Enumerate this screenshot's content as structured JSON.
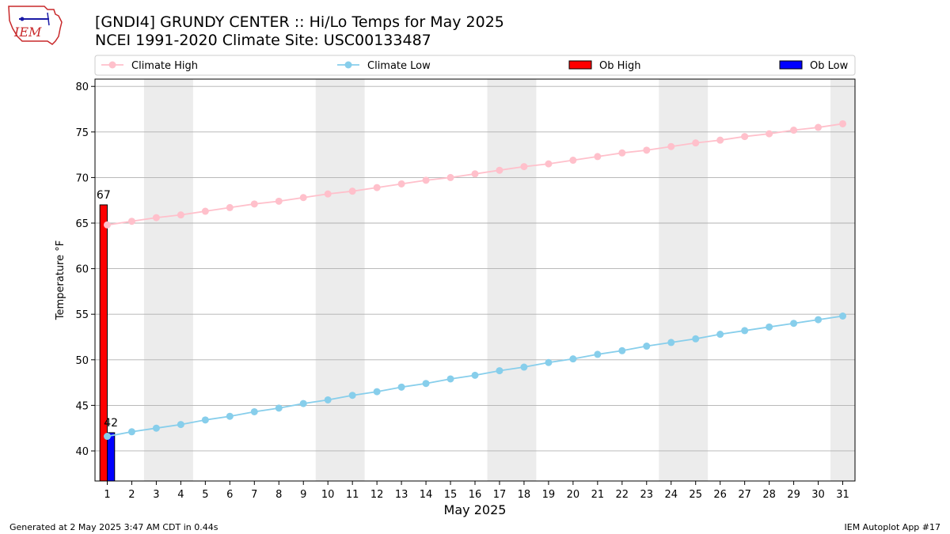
{
  "logo": {
    "text": "IEM"
  },
  "title": {
    "line1": "[GNDI4] GRUNDY CENTER :: Hi/Lo Temps for May 2025",
    "line2": "NCEI 1991-2020 Climate Site: USC00133487"
  },
  "footer": {
    "left": "Generated at 2 May 2025 3:47 AM CDT in 0.44s",
    "right": "IEM Autoplot App #17"
  },
  "colors": {
    "climate_high": "#ffc0cb",
    "climate_low": "#87ceeb",
    "ob_high": "#ff0000",
    "ob_low": "#0000ff",
    "weekend_band": "#ececec",
    "grid": "#b0b0b0"
  },
  "chart_data": {
    "type": "line",
    "xlabel": "May 2025",
    "ylabel": "Temperature °F",
    "xlim": [
      0.5,
      31.5
    ],
    "ylim": [
      36.7,
      80.8
    ],
    "yticks": [
      40,
      45,
      50,
      55,
      60,
      65,
      70,
      75,
      80
    ],
    "x": [
      1,
      2,
      3,
      4,
      5,
      6,
      7,
      8,
      9,
      10,
      11,
      12,
      13,
      14,
      15,
      16,
      17,
      18,
      19,
      20,
      21,
      22,
      23,
      24,
      25,
      26,
      27,
      28,
      29,
      30,
      31
    ],
    "grid": "horizontal",
    "legend_position": "top",
    "weekend_bands": [
      [
        2.5,
        4.5
      ],
      [
        9.5,
        11.5
      ],
      [
        16.5,
        18.5
      ],
      [
        23.5,
        25.5
      ],
      [
        30.5,
        31.5
      ]
    ],
    "series": [
      {
        "name": "Climate High",
        "type": "line",
        "values": [
          64.8,
          65.2,
          65.6,
          65.9,
          66.3,
          66.7,
          67.1,
          67.4,
          67.8,
          68.2,
          68.5,
          68.9,
          69.3,
          69.7,
          70.0,
          70.4,
          70.8,
          71.2,
          71.5,
          71.9,
          72.3,
          72.7,
          73.0,
          73.4,
          73.8,
          74.1,
          74.5,
          74.8,
          75.2,
          75.5,
          75.9
        ]
      },
      {
        "name": "Climate Low",
        "type": "line",
        "values": [
          41.6,
          42.1,
          42.5,
          42.9,
          43.4,
          43.8,
          44.3,
          44.7,
          45.2,
          45.6,
          46.1,
          46.5,
          47.0,
          47.4,
          47.9,
          48.3,
          48.8,
          49.2,
          49.7,
          50.1,
          50.6,
          51.0,
          51.5,
          51.9,
          52.3,
          52.8,
          53.2,
          53.6,
          54.0,
          54.4,
          54.8
        ]
      },
      {
        "name": "Ob High",
        "type": "bar",
        "x": [
          1
        ],
        "values": [
          67
        ],
        "labels": [
          "67"
        ]
      },
      {
        "name": "Ob Low",
        "type": "bar",
        "x": [
          1
        ],
        "values": [
          42
        ],
        "labels": [
          "42"
        ]
      }
    ]
  }
}
